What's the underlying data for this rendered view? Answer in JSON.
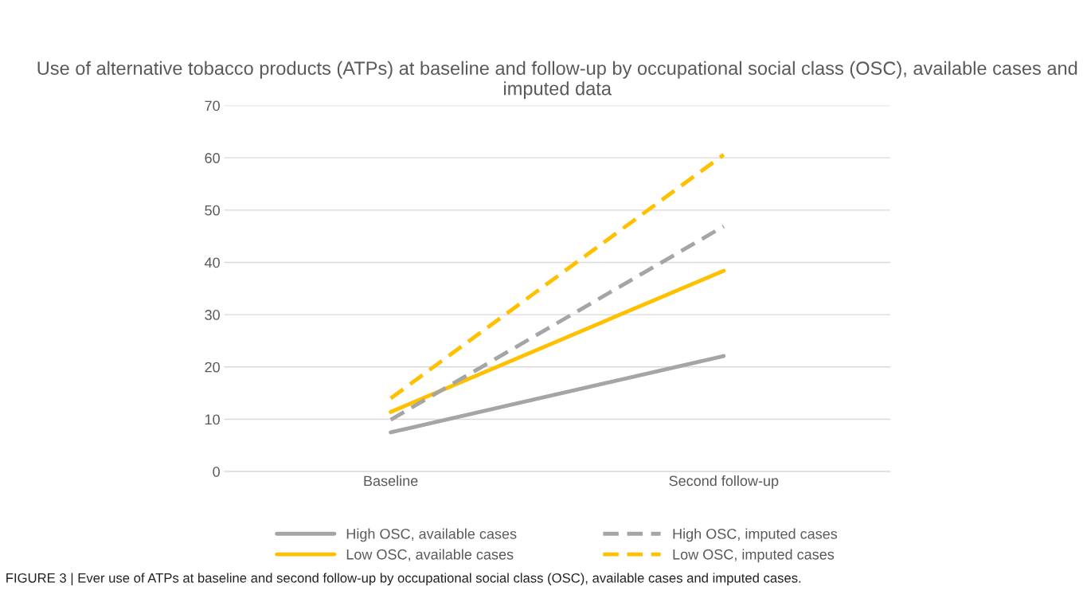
{
  "chart_data": {
    "type": "line",
    "title": "Use of alternative tobacco products (ATPs) at baseline and follow-up by occupational social class (OSC), available cases and imputed data",
    "categories": [
      "Baseline",
      "Second follow-up"
    ],
    "series": [
      {
        "name": "High OSC, available cases",
        "color": "#a5a5a5",
        "values": [
          7.5,
          22.1
        ],
        "line_style": "solid"
      },
      {
        "name": "Low OSC, available cases",
        "color": "#ffc000",
        "values": [
          11.4,
          38.4
        ],
        "line_style": "solid"
      },
      {
        "name": "High OSC, imputed cases",
        "color": "#a5a5a5",
        "values": [
          9.9,
          46.9
        ],
        "line_style": "dashed"
      },
      {
        "name": "Low OSC, imputed cases",
        "color": "#ffc000",
        "values": [
          14.0,
          60.6
        ],
        "line_style": "dashed"
      }
    ],
    "ylim": [
      0,
      70
    ],
    "yticks": [
      0,
      10,
      20,
      30,
      40,
      50,
      60,
      70
    ],
    "grid": "y",
    "legend": "bottom",
    "marker": "none",
    "annotations": [
      "FIGURE 3 | Ever use of ATPs at baseline and second follow-up by occupational social class (OSC), available cases and imputed cases."
    ]
  }
}
